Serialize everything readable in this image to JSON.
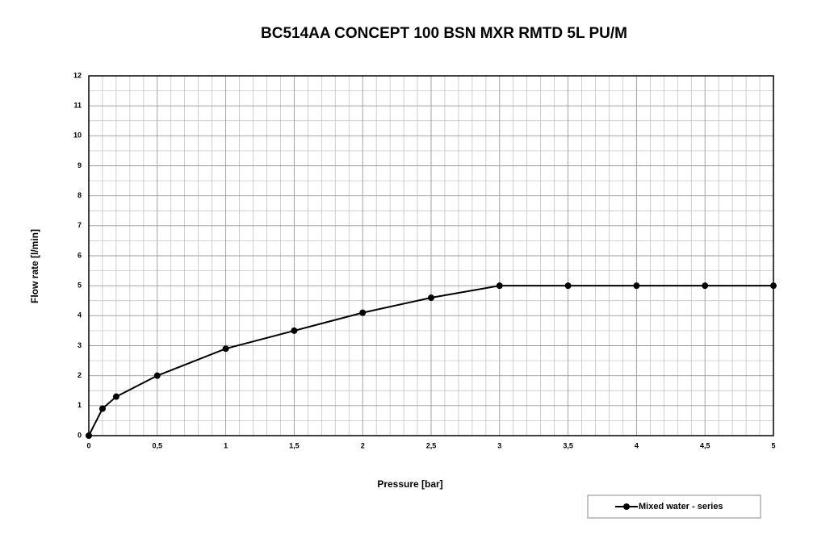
{
  "chart_data": {
    "type": "line",
    "title": "BC514AA  CONCEPT 100 BSN MXR RMTD 5L PU/M",
    "x_label": "Pressure [bar]",
    "y_label": "Flow rate [l/min]",
    "x": [
      0,
      0.1,
      0.2,
      0.5,
      1,
      1.5,
      2,
      2.5,
      3,
      3.5,
      4,
      4.5,
      5
    ],
    "series": [
      {
        "name": "Mixed water - series",
        "color": "#000000",
        "values": [
          0,
          0.9,
          1.3,
          2,
          2.9,
          3.5,
          4.1,
          4.6,
          5,
          5,
          5,
          5,
          5
        ]
      }
    ],
    "xlim": [
      0,
      5
    ],
    "xticks": [
      0,
      {
        "value": 0.5,
        "label": "0,5"
      },
      1,
      {
        "value": 1.5,
        "label": "1,5"
      },
      2,
      {
        "value": 2.5,
        "label": "2,5"
      },
      3,
      {
        "value": 3.5,
        "label": "3,5"
      },
      4,
      {
        "value": 4.5,
        "label": "4,5"
      },
      5
    ],
    "ylim": [
      0,
      12
    ],
    "yticks": [
      0,
      1,
      2,
      3,
      4,
      5,
      6,
      7,
      8,
      9,
      10,
      11,
      12
    ],
    "grid": true,
    "legend": "bottom-right"
  }
}
